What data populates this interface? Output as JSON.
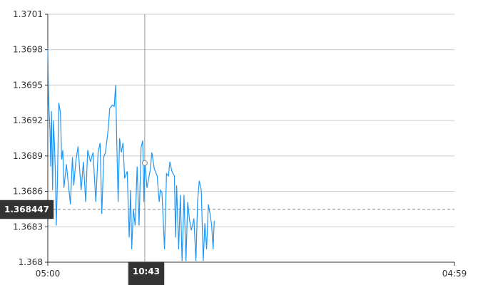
{
  "chart_data": {
    "type": "line",
    "title": "",
    "xlabel": "",
    "ylabel": "",
    "xlim": [
      "05:00",
      "04:59"
    ],
    "ylim": [
      1.368,
      1.3701
    ],
    "x_ticks": [
      "05:00",
      "04:59"
    ],
    "y_ticks": [
      "1.368",
      "1.3683",
      "1.3686",
      "1.3689",
      "1.3692",
      "1.3695",
      "1.3698",
      "1.3701"
    ],
    "grid": "horizontal",
    "line_color": "#2196f3",
    "crosshair": {
      "x_label": "10:43",
      "y_label": "1.368447",
      "x": "10:43",
      "y": 1.368447,
      "point_value": 1.36884
    },
    "series": [
      {
        "x": [
          "05:00",
          "05:03",
          "05:08",
          "05:10",
          "05:13",
          "05:17",
          "05:20",
          "05:24",
          "05:27",
          "05:30",
          "05:34",
          "05:39",
          "05:45",
          "05:49",
          "05:53",
          "05:57",
          "06:06",
          "06:14",
          "06:20",
          "06:27",
          "06:32",
          "06:39",
          "06:47",
          "06:58",
          "07:06",
          "07:14",
          "07:21",
          "07:31",
          "07:40",
          "07:50",
          "07:58",
          "08:05",
          "08:11",
          "08:18",
          "08:24",
          "08:28",
          "08:34",
          "08:39",
          "08:48",
          "08:55",
          "09:00",
          "09:04",
          "09:09",
          "09:14",
          "09:20",
          "09:26",
          "09:32",
          "09:41",
          "09:48",
          "09:53",
          "09:57",
          "10:03",
          "10:09",
          "10:16",
          "10:23",
          "10:30",
          "10:36",
          "10:40",
          "10:43",
          "10:45",
          "10:51",
          "10:57",
          "11:03",
          "11:08",
          "11:17",
          "11:27",
          "11:34",
          "11:38",
          "11:44",
          "11:53",
          "12:00",
          "12:07",
          "12:12",
          "12:19",
          "12:28",
          "12:32",
          "12:36",
          "12:43",
          "12:49",
          "12:55",
          "13:02",
          "13:09",
          "13:15",
          "13:22",
          "13:28",
          "13:37",
          "13:44",
          "13:50",
          "13:56",
          "14:03",
          "14:10",
          "14:16",
          "14:22",
          "14:28",
          "14:34",
          "14:40",
          "14:45",
          "14:49"
        ],
        "y": [
          1.36981,
          1.36936,
          1.36909,
          1.36881,
          1.36928,
          1.36861,
          1.3692,
          1.36897,
          1.36873,
          1.36831,
          1.36869,
          1.36935,
          1.36926,
          1.36887,
          1.36895,
          1.36863,
          1.36883,
          1.36863,
          1.36849,
          1.36889,
          1.36865,
          1.36885,
          1.36898,
          1.36861,
          1.36885,
          1.36851,
          1.36895,
          1.36885,
          1.36893,
          1.36851,
          1.36893,
          1.36901,
          1.36841,
          1.36889,
          1.36893,
          1.36901,
          1.36913,
          1.3693,
          1.36933,
          1.36932,
          1.3695,
          1.36901,
          1.36851,
          1.36905,
          1.36893,
          1.36901,
          1.36871,
          1.36877,
          1.36821,
          1.36861,
          1.36811,
          1.36845,
          1.36831,
          1.36881,
          1.36831,
          1.36897,
          1.36903,
          1.36851,
          1.36884,
          1.36881,
          1.36863,
          1.36871,
          1.36879,
          1.36893,
          1.36879,
          1.36873,
          1.36851,
          1.36861,
          1.36859,
          1.36811,
          1.36875,
          1.36873,
          1.36885,
          1.36877,
          1.36873,
          1.36821,
          1.36865,
          1.36811,
          1.36857,
          1.36801,
          1.36857,
          1.36801,
          1.36851,
          1.36835,
          1.36827,
          1.36837,
          1.36801,
          1.36851,
          1.36869,
          1.36861,
          1.36801,
          1.36833,
          1.36811,
          1.36849,
          1.36841,
          1.36831,
          1.36811,
          1.36835
        ]
      }
    ]
  }
}
